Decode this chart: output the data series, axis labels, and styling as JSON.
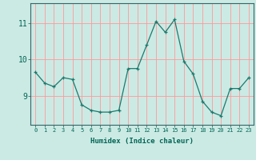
{
  "x": [
    0,
    1,
    2,
    3,
    4,
    5,
    6,
    7,
    8,
    9,
    10,
    11,
    12,
    13,
    14,
    15,
    16,
    17,
    18,
    19,
    20,
    21,
    22,
    23
  ],
  "y": [
    9.65,
    9.35,
    9.25,
    9.5,
    9.45,
    8.75,
    8.6,
    8.55,
    8.55,
    8.6,
    9.75,
    9.75,
    10.4,
    11.05,
    10.75,
    11.1,
    9.95,
    9.6,
    8.85,
    8.55,
    8.45,
    9.2,
    9.2,
    9.5
  ],
  "bg_color": "#cceae4",
  "line_color": "#1a7a6e",
  "marker_color": "#1a7a6e",
  "grid_color_h": "#ff9999",
  "grid_color_v": "#ff9999",
  "xlabel": "Humidex (Indice chaleur)",
  "yticks": [
    9,
    10,
    11
  ],
  "ylim": [
    8.2,
    11.55
  ],
  "xlim": [
    -0.5,
    23.5
  ],
  "border_color": "#336666",
  "label_color": "#006655",
  "tick_color": "#006655"
}
